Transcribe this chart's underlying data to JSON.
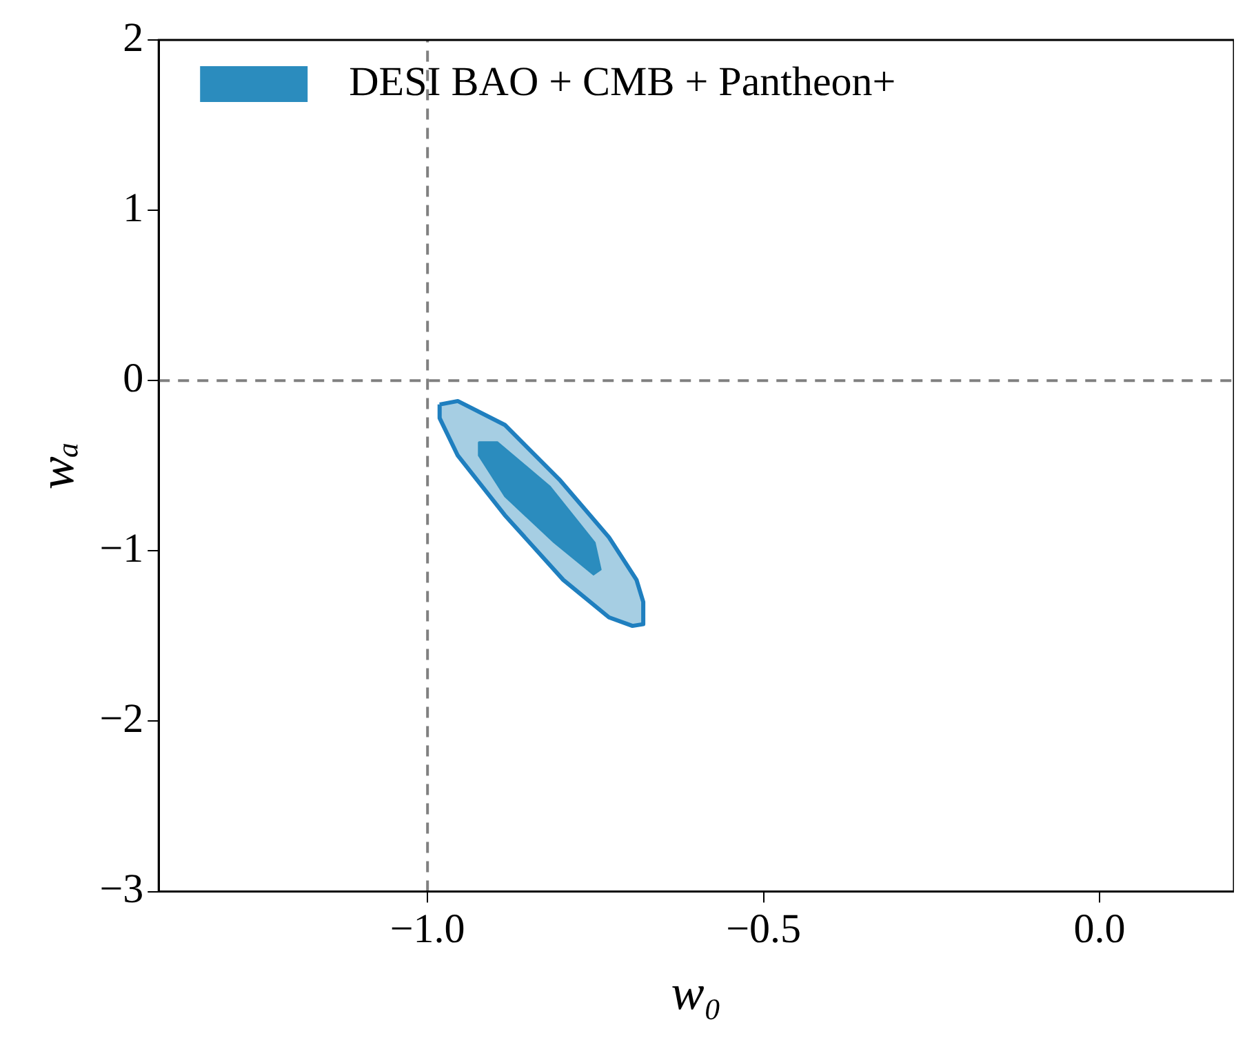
{
  "chart_data": {
    "type": "area",
    "xlabel": "w₀",
    "ylabel": "wₐ",
    "xlim": [
      -1.4,
      0.2
    ],
    "ylim": [
      -3,
      2
    ],
    "xticks": [
      {
        "value": -1.0,
        "label": "−1.0"
      },
      {
        "value": -0.5,
        "label": "−0.5"
      },
      {
        "value": 0.0,
        "label": "0.0"
      }
    ],
    "yticks": [
      {
        "value": -3,
        "label": "−3"
      },
      {
        "value": -2,
        "label": "−2"
      },
      {
        "value": -1,
        "label": "−1"
      },
      0,
      1,
      2
    ],
    "legend": "top left",
    "grid": false,
    "ref_lines": [
      {
        "axis": "x",
        "value": -1,
        "color": "#808080",
        "line_style": "dashed"
      },
      {
        "axis": "y",
        "value": 0,
        "color": "#808080",
        "line_style": "dashed"
      }
    ],
    "series": [
      {
        "color": "#a6cee3",
        "x": [
          -0.982,
          -0.955,
          -0.885,
          -0.804,
          -0.73,
          -0.689,
          -0.679,
          -0.679,
          -0.695,
          -0.73,
          -0.798,
          -0.885,
          -0.955,
          -0.982,
          -0.982
        ],
        "values": [
          -0.14,
          -0.12,
          -0.26,
          -0.58,
          -0.92,
          -1.17,
          -1.3,
          -1.43,
          -1.44,
          -1.39,
          -1.17,
          -0.79,
          -0.44,
          -0.22,
          -0.14
        ]
      },
      {
        "name": "DESI BAO + CMB + Pantheon+",
        "color": "#2b8cbe",
        "x": [
          -0.924,
          -0.896,
          -0.818,
          -0.751,
          -0.742,
          -0.753,
          -0.812,
          -0.885,
          -0.924,
          -0.924
        ],
        "values": [
          -0.36,
          -0.36,
          -0.62,
          -0.95,
          -1.11,
          -1.14,
          -0.95,
          -0.68,
          -0.44,
          -0.36
        ]
      }
    ]
  }
}
